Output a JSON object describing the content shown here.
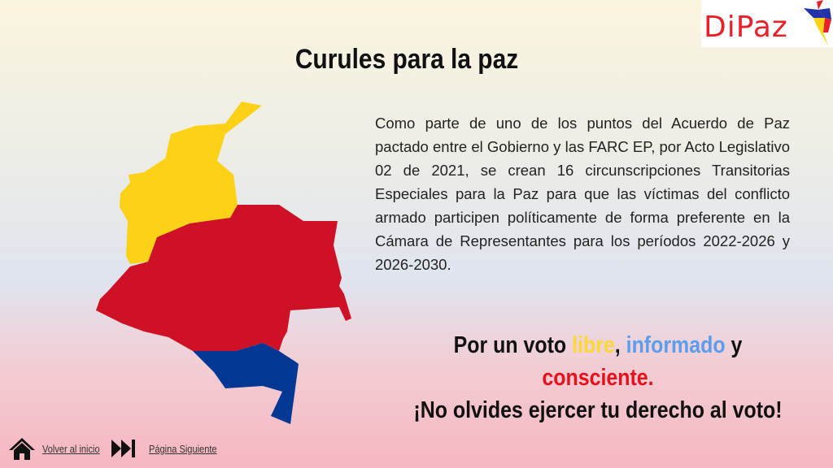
{
  "logo": {
    "text": "DiPaz"
  },
  "title": "Curules para la paz",
  "body": "Como parte de uno de los puntos del Acuerdo de Paz pactado entre el Gobierno y las FARC EP, por Acto Legislativo 02 de 2021, se crean 16 circunscripciones Transitorias Especiales para la Paz para que las víctimas del conflicto armado participen políticamente de forma preferente en la Cámara de Representantes para los períodos 2022-2026 y 2026-2030.",
  "slogan": {
    "prefix": "Por un voto ",
    "libre": "libre",
    "comma": ", ",
    "informado": "informado",
    "y": " y",
    "consciente": "consciente.",
    "call": "¡No olvides ejercer tu derecho al voto!"
  },
  "colors": {
    "yellow": "#fcd116",
    "red": "#ce1126",
    "blue": "#003893",
    "libre": "#fdd835",
    "informado": "#5c9ded",
    "consciente": "#e8101a"
  },
  "nav": {
    "home_icon": "home-icon",
    "home_label": "Volver al inicio",
    "next_icon": "skip-forward-icon",
    "next_label": "Página Siguiente"
  }
}
